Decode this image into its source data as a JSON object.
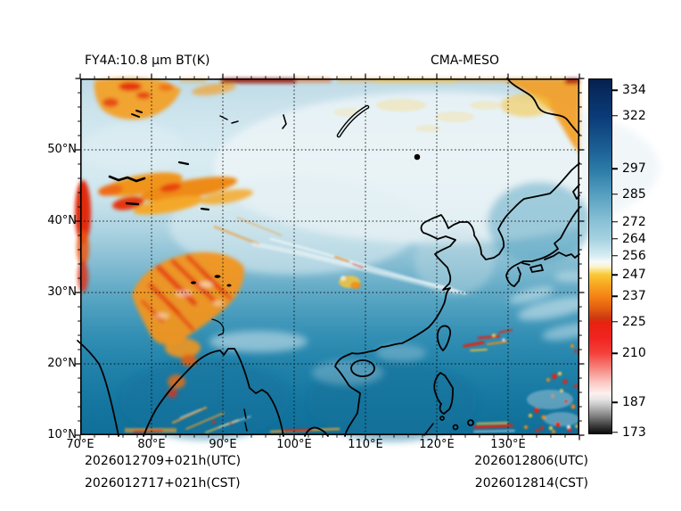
{
  "header": {
    "left_title": "FY4A:10.8 μm BT(K)",
    "right_title": "CMA-MESO"
  },
  "axes": {
    "x_tick_labels": [
      "70°E",
      "80°E",
      "90°E",
      "100°E",
      "110°E",
      "120°E",
      "130°E"
    ],
    "y_tick_labels": [
      "50°N",
      "40°N",
      "30°N",
      "20°N",
      "10°N"
    ]
  },
  "colorbar": {
    "vmin": 172,
    "vmax": 339.5,
    "tick_values": [
      334,
      322,
      297,
      285,
      272,
      264,
      256,
      247,
      237,
      225,
      210,
      187,
      173
    ],
    "units": "K"
  },
  "footer": {
    "init_utc": "2026012709+021h(UTC)",
    "init_cst": "2026012717+021h(CST)",
    "valid_utc": "2026012806(UTC)",
    "valid_cst": "2026012814(CST)"
  },
  "chart_data": {
    "type": "heatmap",
    "title_left": "FY4A:10.8 μm BT(K)",
    "title_right": "CMA-MESO",
    "variable": "simulated FY-4A 10.8 μm brightness temperature (K) from CMA-MESO model",
    "x_axis": {
      "kind": "longitude",
      "range_deg_east": [
        70,
        140
      ],
      "tick_step_deg": 10,
      "ticks": [
        "70°E",
        "80°E",
        "90°E",
        "100°E",
        "110°E",
        "120°E",
        "130°E"
      ]
    },
    "y_axis": {
      "kind": "latitude",
      "range_deg_north": [
        10,
        60
      ],
      "tick_step_deg": 10,
      "ticks": [
        "10°N",
        "20°N",
        "30°N",
        "40°N",
        "50°N"
      ]
    },
    "grid": {
      "visible": true,
      "style": "dotted black at every 10°"
    },
    "colorbar": {
      "position": "right",
      "orientation": "vertical",
      "tick_values_K": [
        334,
        322,
        297,
        285,
        272,
        264,
        256,
        247,
        237,
        225,
        210,
        187,
        173
      ],
      "range_K": [
        173,
        334
      ],
      "colormap_stops": [
        {
          "value_K": 334,
          "color": "#072a5e"
        },
        {
          "value_K": 322,
          "color": "#0a3b78"
        },
        {
          "value_K": 297,
          "color": "#2b7aa6"
        },
        {
          "value_K": 285,
          "color": "#559fc0"
        },
        {
          "value_K": 272,
          "color": "#8ac2d6"
        },
        {
          "value_K": 264,
          "color": "#a6d2e0"
        },
        {
          "value_K": 256,
          "color": "#d8edf3"
        },
        {
          "value_K": 252,
          "color": "#ffffff"
        },
        {
          "value_K": 247,
          "color": "#fbc832"
        },
        {
          "value_K": 237,
          "color": "#f58414"
        },
        {
          "value_K": 228,
          "color": "#cc3a10"
        },
        {
          "value_K": 225,
          "color": "#e8220f"
        },
        {
          "value_K": 210,
          "color": "#f4403a"
        },
        {
          "value_K": 196,
          "color": "#fbc9c4"
        },
        {
          "value_K": 190,
          "color": "#fdf0ee"
        },
        {
          "value_K": 187,
          "color": "#cfcfcf"
        },
        {
          "value_K": 173,
          "color": "#0a0a0a"
        }
      ]
    },
    "annotations": [
      "2026012709+021h(UTC)",
      "2026012717+021h(CST)",
      "2026012806(UTC)",
      "2026012814(CST)"
    ],
    "features": [
      {
        "signature": "cold cloud tops / high terrain (yellow-orange-red, ~210-250 K)",
        "regions": [
          "Tibetan Plateau ~28-37°N 77-92°E (large red-orange mass)",
          "Tien Shan band ~42-47°N 72-95°E",
          "northwest corner ~55-60°N 70-82°E",
          "strip along northern edge near 60°N",
          "northeast corner ~53-60°N 133-140°E",
          "cloud streaks east of Taiwan ~21-25°N 123-130°E",
          "tropical convection ~10-18°N 132-140°E",
          "scattered cells along ~10-12°N"
        ]
      },
      {
        "signature": "warm surface / clear sky (dark blue, ~285-300 K)",
        "regions": [
          "Arabian Sea and Bay of Bengal",
          "South China Sea",
          "western Pacific south of 30°N",
          "India and Indochina"
        ]
      },
      {
        "signature": "cold winter land surface (pale blue-white, ~250-265 K)",
        "regions": [
          "Siberia, Mongolia and northeast China 45-58°N"
        ]
      },
      {
        "signature": "thin cirrus streaks (white)",
        "regions": [
          "jet cirrus from ~36°N 95°E to ~30°N 122°E",
          "bands southeast of Japan"
        ]
      }
    ]
  }
}
